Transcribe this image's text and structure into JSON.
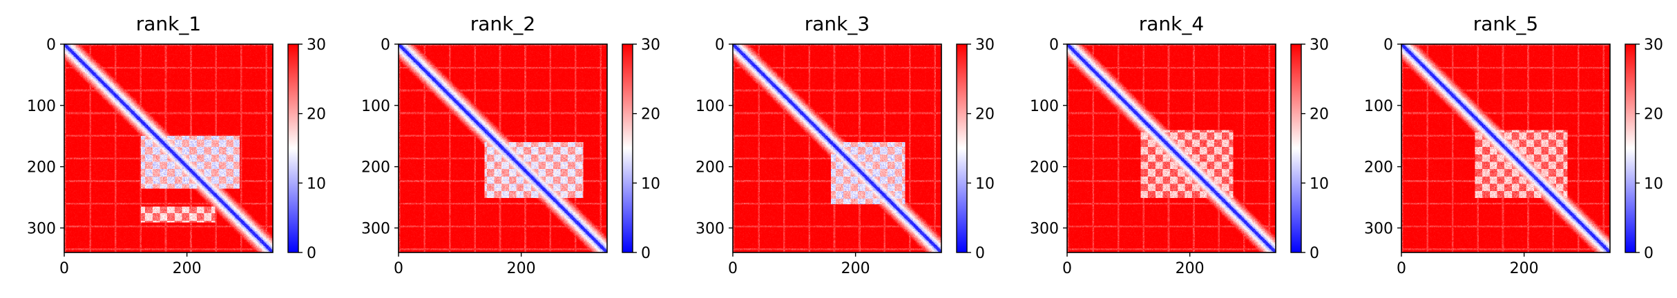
{
  "chart_data": [
    {
      "type": "heatmap",
      "title": "rank_1",
      "matrix_size": 340,
      "xticks": [
        0,
        200
      ],
      "yticks": [
        0,
        100,
        200,
        300
      ],
      "xlim": [
        0,
        340
      ],
      "ylim": [
        340,
        0
      ],
      "colorbar": {
        "ticks": [
          0,
          10,
          20,
          30
        ],
        "range": [
          0,
          30
        ],
        "colormap": "bwr"
      },
      "low_value_blocks": [
        {
          "x": [
            125,
            285
          ],
          "y": [
            150,
            235
          ],
          "value": 13
        },
        {
          "x": [
            125,
            245
          ],
          "y": [
            265,
            290
          ],
          "value": 17
        }
      ]
    },
    {
      "type": "heatmap",
      "title": "rank_2",
      "matrix_size": 340,
      "xticks": [
        0,
        200
      ],
      "yticks": [
        0,
        100,
        200,
        300
      ],
      "xlim": [
        0,
        340
      ],
      "ylim": [
        340,
        0
      ],
      "colorbar": {
        "ticks": [
          0,
          10,
          20,
          30
        ],
        "range": [
          0,
          30
        ],
        "colormap": "bwr"
      },
      "low_value_blocks": [
        {
          "x": [
            140,
            300
          ],
          "y": [
            160,
            250
          ],
          "value": 14
        }
      ]
    },
    {
      "type": "heatmap",
      "title": "rank_3",
      "matrix_size": 340,
      "xticks": [
        0,
        200
      ],
      "yticks": [
        0,
        100,
        200,
        300
      ],
      "xlim": [
        0,
        340
      ],
      "ylim": [
        340,
        0
      ],
      "colorbar": {
        "ticks": [
          0,
          10,
          20,
          30
        ],
        "range": [
          0,
          30
        ],
        "colormap": "bwr"
      },
      "low_value_blocks": [
        {
          "x": [
            160,
            280
          ],
          "y": [
            160,
            260
          ],
          "value": 13
        }
      ]
    },
    {
      "type": "heatmap",
      "title": "rank_4",
      "matrix_size": 340,
      "xticks": [
        0,
        200
      ],
      "yticks": [
        0,
        100,
        200,
        300
      ],
      "xlim": [
        0,
        340
      ],
      "ylim": [
        340,
        0
      ],
      "colorbar": {
        "ticks": [
          0,
          10,
          20,
          30
        ],
        "range": [
          0,
          30
        ],
        "colormap": "bwr"
      },
      "low_value_blocks": [
        {
          "x": [
            120,
            270
          ],
          "y": [
            140,
            250
          ],
          "value": 18
        }
      ]
    },
    {
      "type": "heatmap",
      "title": "rank_5",
      "matrix_size": 340,
      "xticks": [
        0,
        200
      ],
      "yticks": [
        0,
        100,
        200,
        300
      ],
      "xlim": [
        0,
        340
      ],
      "ylim": [
        340,
        0
      ],
      "colorbar": {
        "ticks": [
          0,
          10,
          20,
          30
        ],
        "range": [
          0,
          30
        ],
        "colormap": "bwr"
      },
      "low_value_blocks": [
        {
          "x": [
            120,
            270
          ],
          "y": [
            140,
            250
          ],
          "value": 18
        }
      ]
    }
  ]
}
